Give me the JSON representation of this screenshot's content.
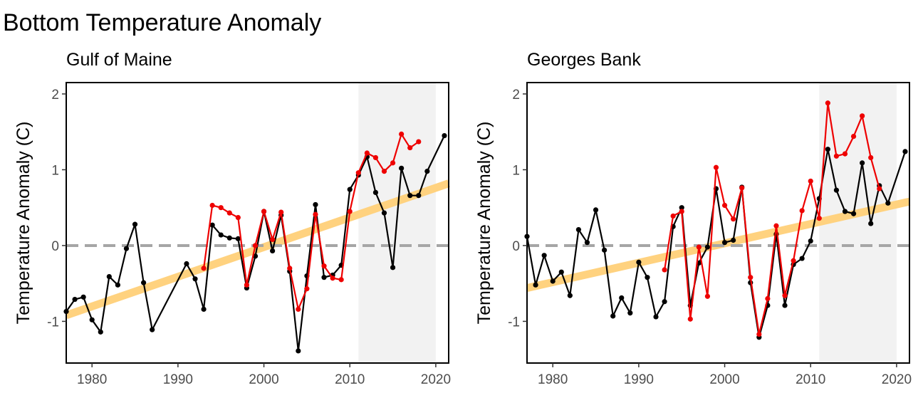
{
  "figure": {
    "title": "Bottom Temperature Anomaly"
  },
  "colors": {
    "black_series": "#000000",
    "red_series": "#ee0000",
    "trend": "#ffd27f",
    "zero_line": "#a6a6a6",
    "shade": "#f2f2f2"
  },
  "chart_data": [
    {
      "type": "line",
      "title": "Gulf of Maine",
      "xlabel": "",
      "ylabel": "Temperature Anomaly (C)",
      "xlim": [
        1977,
        2021.5
      ],
      "ylim": [
        -1.55,
        2.15
      ],
      "x_ticks": [
        1980,
        1990,
        2000,
        2010,
        2020
      ],
      "y_ticks": [
        -1,
        0,
        1,
        2
      ],
      "grid": false,
      "reference_line": {
        "y": 0,
        "style": "dashed"
      },
      "shaded_region": {
        "x_start": 2011,
        "x_end": 2020
      },
      "trend": {
        "x": [
          1977,
          2021.5
        ],
        "y": [
          -0.92,
          0.82
        ]
      },
      "series": [
        {
          "color": "black",
          "x": [
            1977,
            1978,
            1979,
            1980,
            1981,
            1982,
            1983,
            1984,
            1985,
            1986,
            1987,
            1991,
            1992,
            1993,
            1994,
            1995,
            1996,
            1997,
            1998,
            1999,
            2000,
            2001,
            2002,
            2003,
            2004,
            2005,
            2006,
            2007,
            2008,
            2009,
            2010,
            2011,
            2012,
            2013,
            2014,
            2015,
            2016,
            2017,
            2018,
            2019,
            2021
          ],
          "y": [
            -0.87,
            -0.71,
            -0.68,
            -0.98,
            -1.14,
            -0.41,
            -0.52,
            -0.04,
            0.28,
            -0.49,
            -1.11,
            -0.24,
            -0.44,
            -0.84,
            0.27,
            0.14,
            0.1,
            0.09,
            -0.56,
            -0.14,
            0.45,
            -0.07,
            0.4,
            -0.34,
            -1.39,
            -0.4,
            0.54,
            -0.42,
            -0.39,
            -0.26,
            0.74,
            0.93,
            1.17,
            0.7,
            0.43,
            -0.29,
            1.02,
            0.66,
            0.66,
            0.98,
            1.45
          ]
        },
        {
          "color": "red",
          "x": [
            1993,
            1994,
            1995,
            1996,
            1997,
            1998,
            1999,
            2000,
            2001,
            2002,
            2003,
            2004,
            2005,
            2006,
            2007,
            2008,
            2009,
            2010,
            2011,
            2012,
            2013,
            2014,
            2015,
            2016,
            2017,
            2018
          ],
          "y": [
            -0.3,
            0.53,
            0.5,
            0.43,
            0.37,
            -0.52,
            0.0,
            0.45,
            0.08,
            0.44,
            -0.3,
            -0.84,
            -0.57,
            0.41,
            -0.27,
            -0.43,
            -0.45,
            0.45,
            0.96,
            1.22,
            1.16,
            0.98,
            1.09,
            1.47,
            1.29,
            1.37
          ]
        }
      ]
    },
    {
      "type": "line",
      "title": "Georges Bank",
      "xlabel": "",
      "ylabel": "Temperature Anomaly (C)",
      "xlim": [
        1977,
        2021.5
      ],
      "ylim": [
        -1.55,
        2.15
      ],
      "x_ticks": [
        1980,
        1990,
        2000,
        2010,
        2020
      ],
      "y_ticks": [
        -1,
        0,
        1,
        2
      ],
      "grid": false,
      "reference_line": {
        "y": 0,
        "style": "dashed"
      },
      "shaded_region": {
        "x_start": 2011,
        "x_end": 2020
      },
      "trend": {
        "x": [
          1977,
          2021.5
        ],
        "y": [
          -0.56,
          0.58
        ]
      },
      "series": [
        {
          "color": "black",
          "x": [
            1977,
            1978,
            1979,
            1980,
            1981,
            1982,
            1983,
            1984,
            1985,
            1986,
            1987,
            1988,
            1989,
            1990,
            1991,
            1992,
            1993,
            1994,
            1995,
            1996,
            1997,
            1998,
            1999,
            2000,
            2001,
            2002,
            2003,
            2004,
            2005,
            2006,
            2007,
            2008,
            2009,
            2010,
            2011,
            2012,
            2013,
            2014,
            2015,
            2016,
            2017,
            2018,
            2019,
            2021
          ],
          "y": [
            0.12,
            -0.52,
            -0.13,
            -0.47,
            -0.35,
            -0.66,
            0.21,
            0.04,
            0.47,
            -0.06,
            -0.93,
            -0.69,
            -0.89,
            -0.22,
            -0.42,
            -0.94,
            -0.74,
            0.25,
            0.5,
            -0.79,
            -0.23,
            -0.02,
            0.75,
            0.04,
            0.07,
            0.77,
            -0.49,
            -1.21,
            -0.79,
            0.15,
            -0.79,
            -0.25,
            -0.17,
            0.06,
            0.62,
            1.27,
            0.73,
            0.45,
            0.42,
            1.09,
            0.29,
            0.79,
            0.56,
            1.24
          ]
        },
        {
          "color": "red",
          "x": [
            1993,
            1994,
            1995,
            1996,
            1997,
            1998,
            1999,
            2000,
            2001,
            2002,
            2003,
            2004,
            2005,
            2006,
            2007,
            2008,
            2009,
            2010,
            2011,
            2012,
            2013,
            2014,
            2015,
            2016,
            2017,
            2018
          ],
          "y": [
            -0.32,
            0.39,
            0.45,
            -0.97,
            -0.02,
            -0.67,
            1.03,
            0.53,
            0.35,
            0.76,
            -0.42,
            -1.17,
            -0.7,
            0.26,
            -0.66,
            -0.2,
            0.46,
            0.85,
            0.36,
            1.88,
            1.18,
            1.21,
            1.44,
            1.71,
            1.16,
            0.75
          ]
        }
      ]
    }
  ]
}
